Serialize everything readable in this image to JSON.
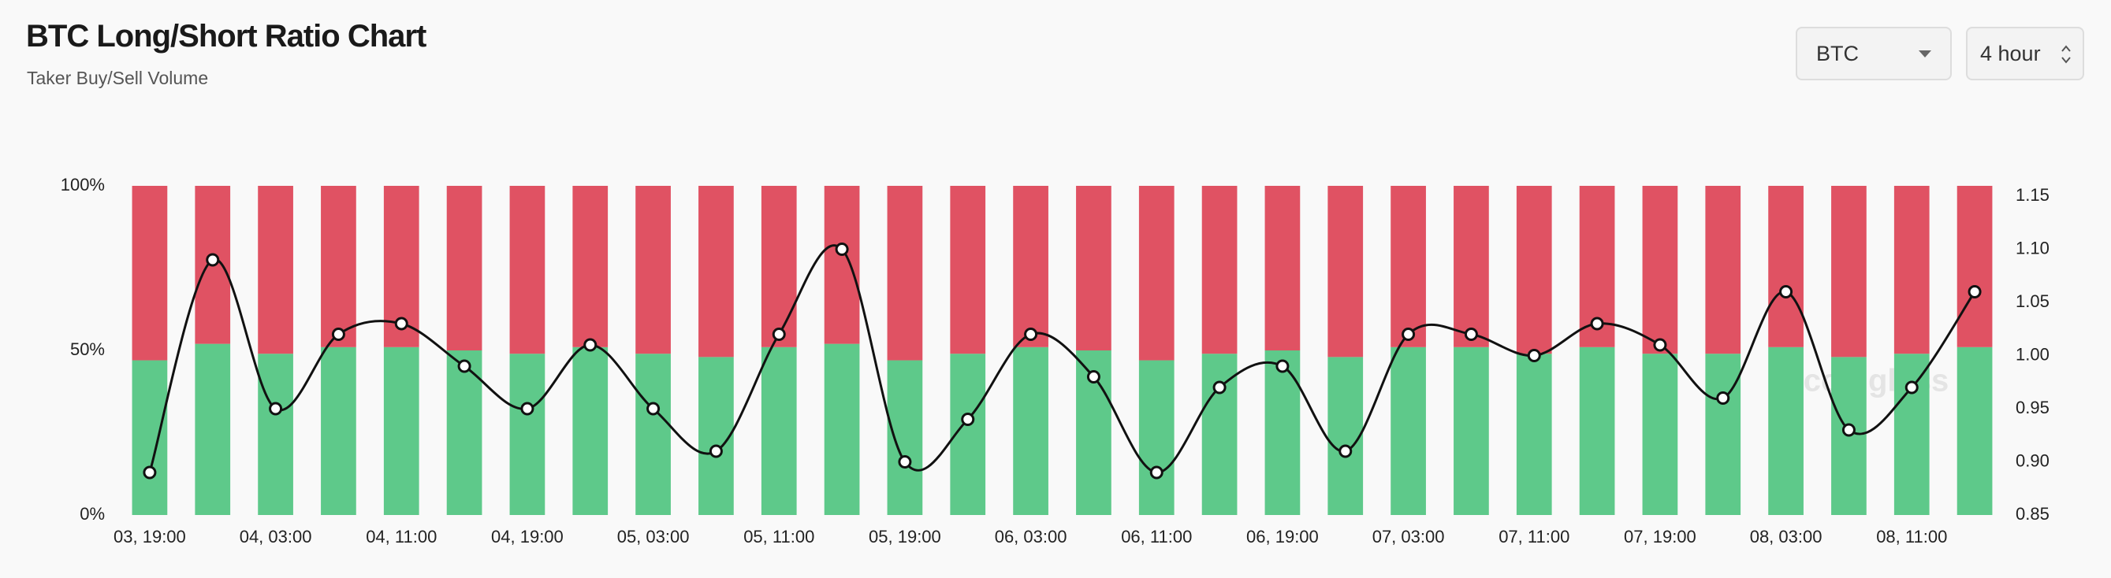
{
  "header": {
    "title": "BTC Long/Short Ratio Chart",
    "subtitle": "Taker Buy/Sell Volume",
    "symbol": "BTC",
    "interval": "4 hour"
  },
  "chart_data": {
    "type": "bar-line",
    "categories": [
      "03, 19:00",
      null,
      "04, 03:00",
      null,
      "04, 11:00",
      null,
      "04, 19:00",
      null,
      "05, 03:00",
      null,
      "05, 11:00",
      null,
      "05, 19:00",
      null,
      "06, 03:00",
      null,
      "06, 11:00",
      null,
      "06, 19:00",
      null,
      "07, 03:00",
      null,
      "07, 11:00",
      null,
      "07, 19:00",
      null,
      "08, 03:00",
      null,
      "08, 11:00",
      null
    ],
    "series": [
      {
        "color": "#5ec98a",
        "values": [
          47,
          52,
          49,
          51,
          51,
          50,
          49,
          51,
          49,
          48,
          51,
          52,
          47,
          49,
          51,
          50,
          47,
          49,
          50,
          48,
          51,
          51,
          49,
          51,
          49,
          49,
          51,
          48,
          49,
          51
        ]
      },
      {
        "color": "#e05263",
        "values": [
          53,
          48,
          51,
          49,
          49,
          50,
          51,
          49,
          51,
          52,
          49,
          48,
          53,
          51,
          49,
          50,
          53,
          51,
          50,
          52,
          49,
          49,
          51,
          49,
          51,
          51,
          49,
          52,
          51,
          49
        ]
      },
      {
        "color": "#111111",
        "axis": "y2",
        "values": [
          0.89,
          1.09,
          0.95,
          1.02,
          1.03,
          0.99,
          0.95,
          1.01,
          0.95,
          0.91,
          1.02,
          1.1,
          0.9,
          0.94,
          1.02,
          0.98,
          0.89,
          0.97,
          0.99,
          0.91,
          1.02,
          1.02,
          1.0,
          1.03,
          1.01,
          0.96,
          1.06,
          0.93,
          0.97,
          1.06
        ]
      }
    ],
    "stacked": true,
    "ylim": [
      0,
      100
    ],
    "yticks": [
      {
        "value": 0,
        "label": "0%"
      },
      {
        "value": 50,
        "label": "50%"
      },
      {
        "value": 100,
        "label": "100%"
      }
    ],
    "y2lim": [
      0.85,
      1.15
    ],
    "y2ticks": [
      0.85,
      {
        "value": 0.9,
        "label": "0.90"
      },
      0.95,
      {
        "value": 1,
        "label": "1.00"
      },
      1.05,
      {
        "value": 1.1,
        "label": "1.10"
      },
      1.15
    ],
    "watermark": "coinglass"
  }
}
